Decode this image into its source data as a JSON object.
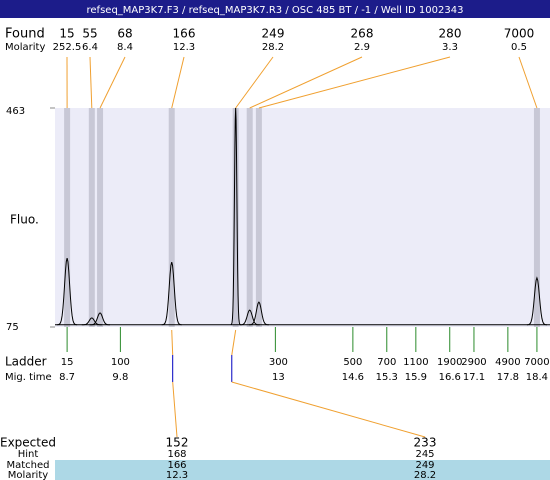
{
  "header": {
    "title": "refseq_MAP3K7.F3 / refseq_MAP3K7.R3 / OSC 485 BT / -1 / Well ID 1002343"
  },
  "found": {
    "label": "Found",
    "molarity_label": "Molarity",
    "peaks": [
      {
        "size": 15,
        "molarity": 252.5,
        "time": 8.7,
        "height": 197
      },
      {
        "size": 55,
        "molarity": 6.4,
        "time": 9.21,
        "height": 91
      },
      {
        "size": 68,
        "molarity": 8.4,
        "time": 9.38,
        "height": 100
      },
      {
        "size": 166,
        "molarity": 12.3,
        "time": 10.86,
        "height": 190
      },
      {
        "size": 249,
        "molarity": 28.2,
        "time": 12.18,
        "height": 463
      },
      {
        "size": 268,
        "molarity": 2.9,
        "time": 12.47,
        "height": 105
      },
      {
        "size": 280,
        "molarity": 3.3,
        "time": 12.66,
        "height": 119
      },
      {
        "size": 7000,
        "molarity": 0.5,
        "time": 18.4,
        "height": 162
      }
    ]
  },
  "plot": {
    "ylabel": "Fluo.",
    "ylim": [
      75,
      463
    ],
    "yticks": [
      75,
      463
    ],
    "xlim": [
      8.45,
      18.67
    ],
    "baseline": 79
  },
  "ladder": {
    "label": "Ladder",
    "time_label": "Mig. time",
    "sizes": [
      15,
      100,
      300,
      500,
      700,
      1100,
      1900,
      2900,
      4900,
      7000
    ],
    "times": [
      8.7,
      9.8,
      13,
      14.6,
      15.3,
      15.9,
      16.6,
      17.1,
      17.8,
      18.4
    ]
  },
  "expected": {
    "label": "Expected",
    "hint_label": "Hint",
    "matched_label": "Matched",
    "molarity_label": "Molarity",
    "items": [
      {
        "expected": 152,
        "hint": 168,
        "matched": 166,
        "molarity": 12.3,
        "time": 10.88
      },
      {
        "expected": 233,
        "hint": 245,
        "matched": 249,
        "molarity": 28.2,
        "time": 12.1
      }
    ]
  }
}
